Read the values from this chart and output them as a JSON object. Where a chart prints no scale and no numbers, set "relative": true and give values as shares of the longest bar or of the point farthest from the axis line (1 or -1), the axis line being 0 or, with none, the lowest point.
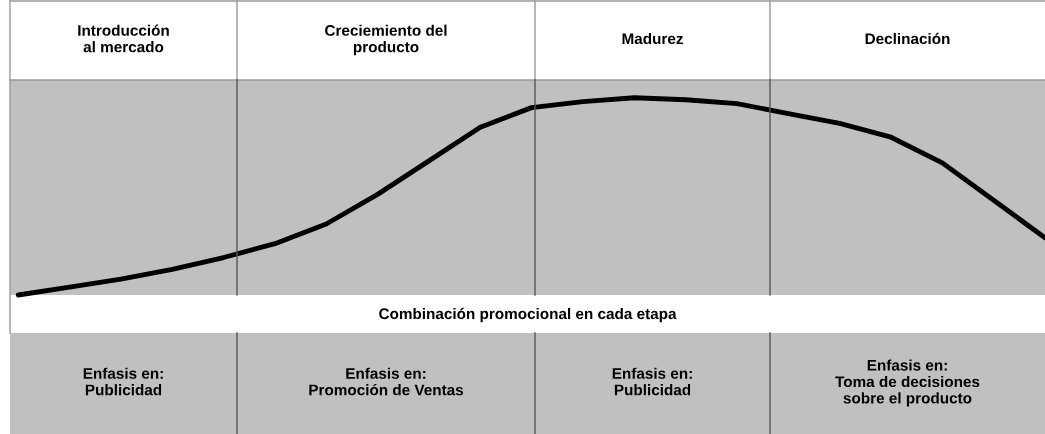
{
  "chart_data": {
    "type": "line",
    "relative": true,
    "categories": [
      null,
      null,
      null,
      null,
      null,
      null,
      null,
      null,
      null,
      null,
      null,
      null,
      null,
      null,
      null,
      null,
      null,
      null,
      null,
      null,
      null
    ],
    "series": [
      {
        "color": "#000000",
        "values": [
          0,
          0.04,
          0.08,
          0.13,
          0.19,
          0.26,
          0.36,
          0.51,
          0.68,
          0.85,
          0.95,
          0.98,
          1.0,
          0.99,
          0.97,
          0.92,
          0.87,
          0.8,
          0.67,
          0.48,
          0.29
        ]
      }
    ],
    "annotations": [
      "Introducción\nal mercado",
      "Creciemiento del\nproducto",
      "Madurez",
      "Declinación",
      "Combinación promocional en cada etapa",
      "Enfasis en:\nPublicidad",
      "Enfasis en:\nPromoción de Ventas",
      "Enfasis en:\nPublicidad",
      "Enfasis en:\nToma de decisiones\nsobre el producto"
    ],
    "line_style": "solid",
    "marker": "none"
  }
}
